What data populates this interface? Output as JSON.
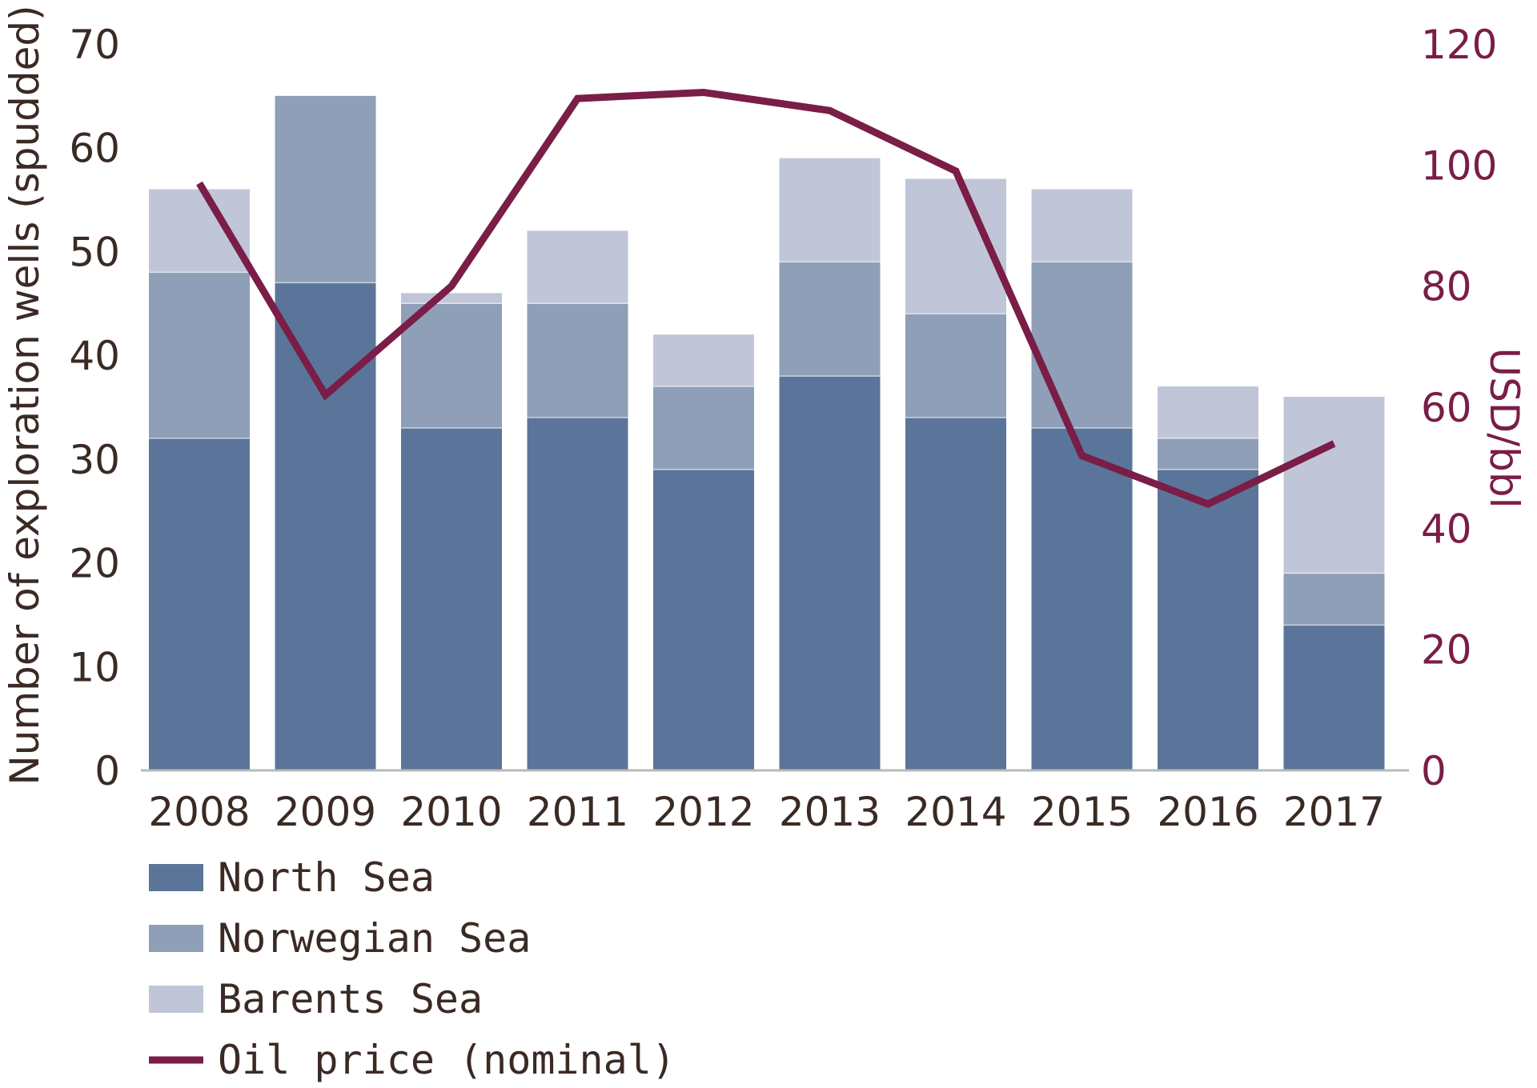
{
  "chart_data": {
    "type": "bar",
    "stacked": true,
    "categories": [
      "2008",
      "2009",
      "2010",
      "2011",
      "2012",
      "2013",
      "2014",
      "2015",
      "2016",
      "2017"
    ],
    "series": [
      {
        "name": "North Sea",
        "values": [
          32,
          47,
          33,
          34,
          29,
          38,
          34,
          33,
          29,
          14
        ],
        "color": "#5a7599"
      },
      {
        "name": "Norwegian Sea",
        "values": [
          16,
          18,
          12,
          11,
          8,
          11,
          10,
          16,
          3,
          5
        ],
        "color": "#8e9fb7"
      },
      {
        "name": "Barents Sea",
        "values": [
          8,
          0,
          1,
          7,
          5,
          10,
          13,
          7,
          5,
          17
        ],
        "color": "#c0c6d8"
      }
    ],
    "line_series": {
      "name": "Oil price (nominal)",
      "axis": "right",
      "values": [
        97,
        62,
        80,
        111,
        112,
        109,
        99,
        52,
        44,
        54
      ],
      "color": "#7a1d47"
    },
    "ylabel": "Number of exploration wells (spudded)",
    "ylim": [
      0,
      70
    ],
    "yticks": [
      "0",
      "10",
      "20",
      "30",
      "40",
      "50",
      "60",
      "70"
    ],
    "y2label": "USD/bbl",
    "y2lim": [
      0,
      120
    ],
    "y2ticks": [
      "0",
      "20",
      "40",
      "60",
      "80",
      "100",
      "120"
    ],
    "grid": false,
    "legend_position": "bottom-left"
  }
}
